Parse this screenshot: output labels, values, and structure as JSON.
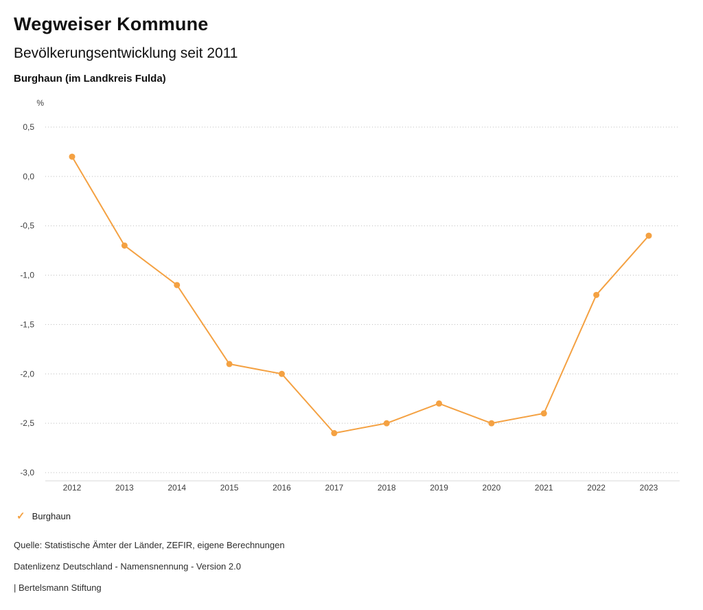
{
  "header": {
    "title": "Wegweiser Kommune",
    "subtitle": "Bevölkerungsentwicklung seit 2011",
    "region": "Burghaun (im Landkreis Fulda)"
  },
  "chart_data": {
    "type": "line",
    "title": "Bevölkerungsentwicklung seit 2011",
    "subtitle": "Burghaun (im Landkreis Fulda)",
    "unit_label": "%",
    "x": [
      "2012",
      "2013",
      "2014",
      "2015",
      "2016",
      "2017",
      "2018",
      "2019",
      "2020",
      "2021",
      "2022",
      "2023"
    ],
    "series": [
      {
        "name": "Burghaun",
        "color": "#f4a142",
        "values": [
          0.2,
          -0.7,
          -1.1,
          -1.9,
          -2.0,
          -2.6,
          -2.5,
          -2.3,
          -2.5,
          -2.4,
          -1.2,
          -0.6
        ]
      }
    ],
    "ylim": [
      -3.0,
      0.5
    ],
    "yticks": [
      {
        "value": 0.5,
        "label": "0,5"
      },
      {
        "value": 0.0,
        "label": "0,0"
      },
      {
        "value": -0.5,
        "label": "-0,5"
      },
      {
        "value": -1.0,
        "label": "-1,0"
      },
      {
        "value": -1.5,
        "label": "-1,5"
      },
      {
        "value": -2.0,
        "label": "-2,0"
      },
      {
        "value": -2.5,
        "label": "-2,5"
      },
      {
        "value": -3.0,
        "label": "-3,0"
      }
    ],
    "grid": "horizontal-dotted",
    "legend_position": "bottom-left"
  },
  "legend": {
    "items": [
      {
        "label": "Burghaun",
        "color": "#f4a142",
        "icon": "check"
      }
    ]
  },
  "footer": {
    "source": "Quelle: Statistische Ämter der Länder, ZEFIR, eigene Berechnungen",
    "license": "Datenlizenz Deutschland - Namensnennung - Version 2.0",
    "attribution": "| Bertelsmann Stiftung"
  }
}
